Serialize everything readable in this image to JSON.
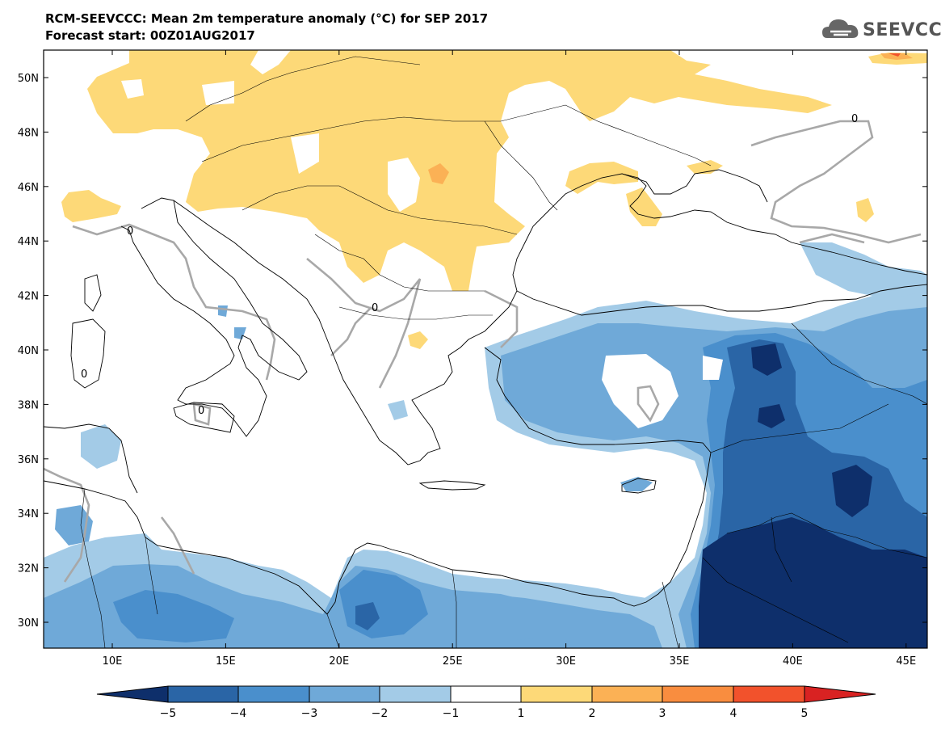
{
  "header": {
    "title": "RCM-SEEVCCC: Mean 2m temperature anomaly (°C) for SEP 2017",
    "subtitle": "Forecast start: 00Z01AUG2017"
  },
  "logo": {
    "text": "SEEVCCC",
    "icon": "cloud-icon"
  },
  "map": {
    "lat_labels": [
      "50N",
      "48N",
      "46N",
      "44N",
      "42N",
      "40N",
      "38N",
      "36N",
      "34N",
      "32N",
      "30N"
    ],
    "lon_labels": [
      "10E",
      "15E",
      "20E",
      "25E",
      "30E",
      "35E",
      "40E",
      "45E"
    ],
    "contour_label": "0",
    "colors": {
      "m5": "#0e2f6b",
      "m4": "#2a65a6",
      "m3": "#4a8fcc",
      "m2": "#6fa9d8",
      "m1": "#a3cbe7",
      "zero": "#ffffff",
      "p1": "#fdd978",
      "p2": "#fbb155",
      "p3": "#f98d3f",
      "p4": "#f2522c",
      "p5": "#d92222",
      "coast": "#000000",
      "contour": "#a8a8a8"
    }
  },
  "colorbar": {
    "labels": [
      "−5",
      "−4",
      "−3",
      "−2",
      "−1",
      "1",
      "2",
      "3",
      "4",
      "5"
    ]
  }
}
